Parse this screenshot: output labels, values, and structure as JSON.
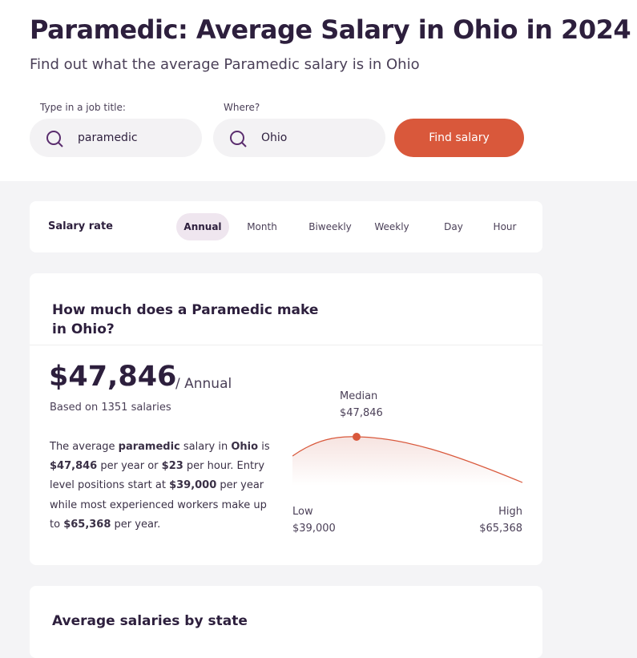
{
  "header": {
    "title": "Paramedic: Average Salary in Ohio in 2024",
    "subtitle": "Find out what the average Paramedic salary is in Ohio"
  },
  "search": {
    "job_label": "Type in a job title:",
    "job_value": "paramedic",
    "where_label": "Where?",
    "where_value": "Ohio",
    "button": "Find salary"
  },
  "rate": {
    "label": "Salary rate",
    "tabs": [
      "Annual",
      "Month",
      "Biweekly",
      "Weekly",
      "Day",
      "Hour"
    ],
    "active": 0
  },
  "summary": {
    "heading": "How much does a Paramedic make in Ohio?",
    "amount": "$47,846",
    "period": "/ Annual",
    "based_on": "Based on 1351 salaries",
    "description": [
      "The average ",
      "paramedic",
      " salary in ",
      "Ohio",
      " is ",
      "$47,846",
      " per year or ",
      "$23",
      " per hour. Entry level positions start at ",
      "$39,000",
      " per year while most experienced workers make up to ",
      "$65,368",
      " per year."
    ],
    "median_label": "Median",
    "median_value": "$47,846",
    "low_label": "Low",
    "low_value": "$39,000",
    "high_label": "High",
    "high_value": "$65,368"
  },
  "states": {
    "heading": "Average salaries by state"
  }
}
